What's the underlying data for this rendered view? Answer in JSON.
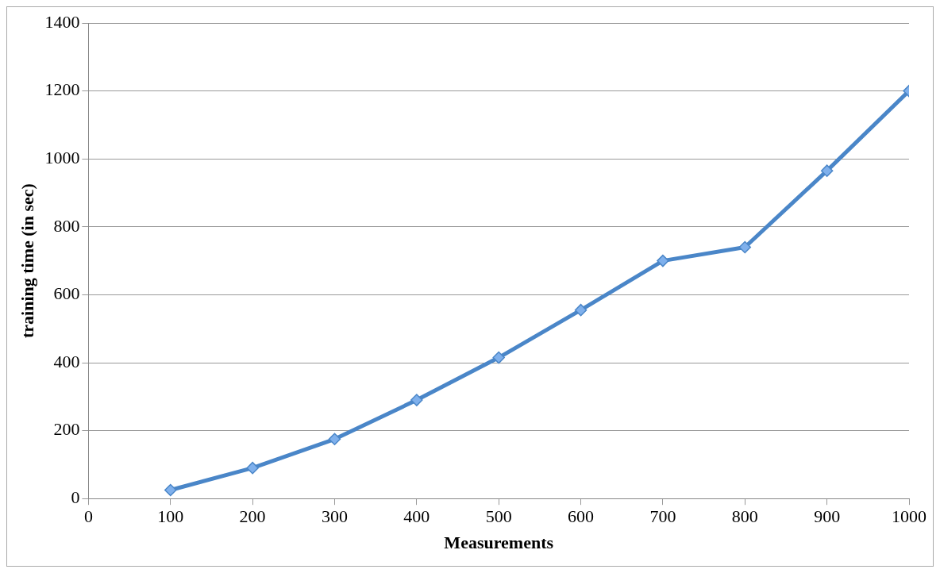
{
  "chart_data": {
    "type": "line",
    "xlabel": "Measurements",
    "ylabel": "training time (in sec)",
    "x": [
      100,
      200,
      300,
      400,
      500,
      600,
      700,
      800,
      900,
      1000
    ],
    "series": [
      {
        "color": "#4a86c8",
        "values": [
          25,
          90,
          175,
          290,
          415,
          555,
          700,
          740,
          965,
          1200
        ]
      }
    ],
    "xlim": [
      0,
      1000
    ],
    "xticks": [
      0,
      100,
      200,
      300,
      400,
      500,
      600,
      700,
      800,
      900,
      1000
    ],
    "ylim": [
      0,
      1400
    ],
    "yticks": [
      0,
      200,
      400,
      600,
      800,
      1000,
      1200,
      1400
    ],
    "grid": "y",
    "legend": false,
    "marker": "diamond",
    "line_style": "solid"
  }
}
